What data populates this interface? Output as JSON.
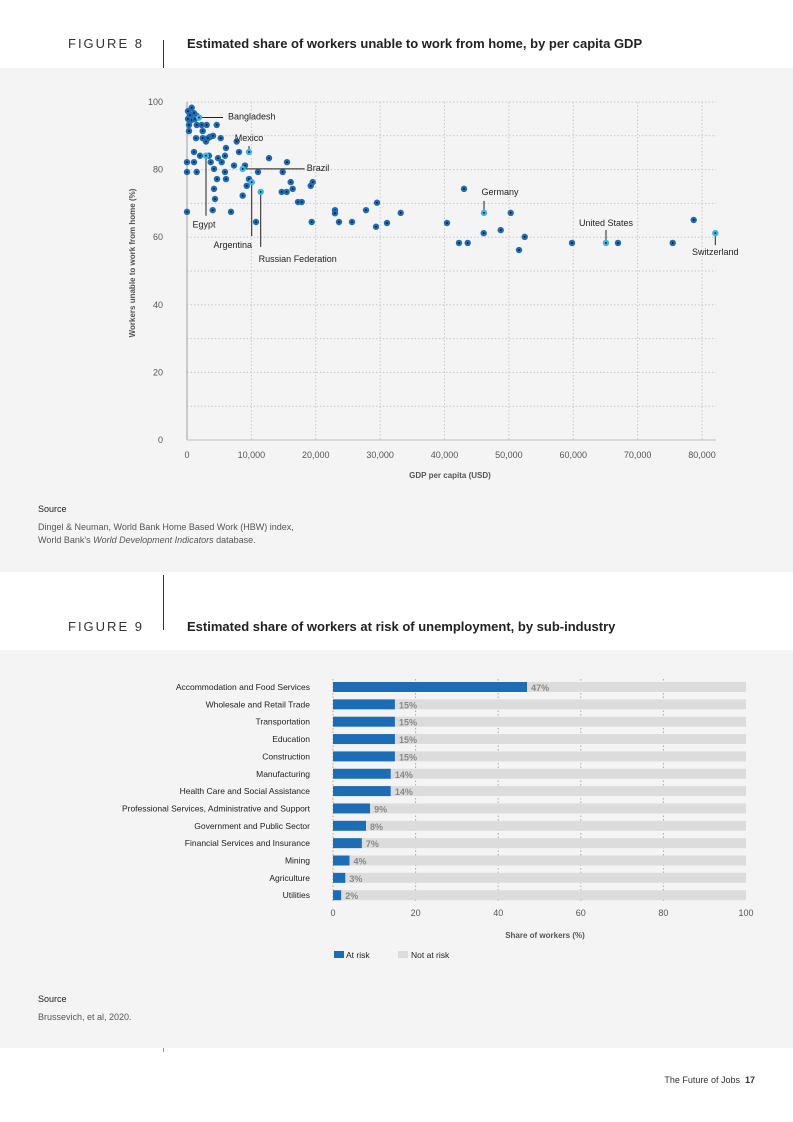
{
  "figure8": {
    "number": "FIGURE 8",
    "title": "Estimated share of workers unable to work from home, by per capita GDP",
    "source_heading": "Source",
    "source_line1": "Dingel & Neuman, World Bank Home Based Work (HBW) index,",
    "source_line2_prefix": "World Bank's ",
    "source_line2_italic": "World Development Indicators",
    "source_line2_suffix": " database."
  },
  "figure9": {
    "number": "FIGURE 9",
    "title": "Estimated share of workers at risk of unemployment, by sub-industry",
    "source_heading": "Source",
    "source_line1": "Brussevich, et al, 2020."
  },
  "footer": {
    "publication": "The Future of Jobs",
    "page": "17"
  },
  "chart_data": [
    {
      "type": "scatter",
      "xlabel": "GDP per capita (USD)",
      "ylabel": "Workers unable to work from home (%)",
      "xlim": [
        0,
        80000
      ],
      "ylim": [
        0,
        100
      ],
      "xticks": [
        "0",
        "10,000",
        "20,000",
        "30,000",
        "40,000",
        "50,000",
        "60,000",
        "70,000",
        "80,000"
      ],
      "yticks": [
        "0",
        "20",
        "40",
        "60",
        "80",
        "100"
      ],
      "grid": true,
      "colors": {
        "point": "#1f6cb5",
        "highlight": "#3cb4e5",
        "center": "#111111"
      },
      "points": [
        [
          730,
          98.3
        ],
        [
          155,
          97.3
        ],
        [
          1087,
          96.7
        ],
        [
          466,
          96.1
        ],
        [
          1507,
          95.9
        ],
        [
          155,
          95.0
        ],
        [
          730,
          94.7
        ],
        [
          1243,
          95.0
        ],
        [
          311,
          93.2
        ],
        [
          1507,
          93.2
        ],
        [
          2284,
          93.2
        ],
        [
          3060,
          93.2
        ],
        [
          4614,
          93.2
        ],
        [
          311,
          91.4
        ],
        [
          2439,
          91.4
        ],
        [
          1398,
          89.3
        ],
        [
          2439,
          89.3
        ],
        [
          3573,
          89.7
        ],
        [
          4039,
          90.0
        ],
        [
          3262,
          89.3
        ],
        [
          2951,
          88.3
        ],
        [
          5235,
          89.3
        ],
        [
          7720,
          88.3
        ],
        [
          6058,
          86.4
        ],
        [
          8078,
          85.2
        ],
        [
          1087,
          85.2
        ],
        [
          2019,
          84.1
        ],
        [
          3418,
          84.1
        ],
        [
          5903,
          84.1
        ],
        [
          4816,
          83.4
        ],
        [
          5390,
          82.2
        ],
        [
          12738,
          83.4
        ],
        [
          15534,
          82.2
        ],
        [
          0,
          82.2
        ],
        [
          1087,
          82.2
        ],
        [
          3682,
          82.2
        ],
        [
          7301,
          81.2
        ],
        [
          9010,
          81.2
        ],
        [
          4194,
          80.2
        ],
        [
          0,
          79.3
        ],
        [
          1507,
          79.3
        ],
        [
          5903,
          79.3
        ],
        [
          11029,
          79.3
        ],
        [
          14866,
          79.3
        ],
        [
          4660,
          77.2
        ],
        [
          6058,
          77.2
        ],
        [
          9631,
          77.2
        ],
        [
          9274,
          75.2
        ],
        [
          16109,
          76.3
        ],
        [
          19526,
          76.3
        ],
        [
          19216,
          75.2
        ],
        [
          4194,
          74.3
        ],
        [
          16419,
          74.3
        ],
        [
          14711,
          73.4
        ],
        [
          15488,
          73.4
        ],
        [
          8653,
          72.3
        ],
        [
          4350,
          71.3
        ],
        [
          17243,
          70.4
        ],
        [
          17817,
          70.4
        ],
        [
          0,
          67.5
        ],
        [
          3992,
          68.0
        ],
        [
          6835,
          67.5
        ],
        [
          22990,
          68.0
        ],
        [
          22990,
          67.1
        ],
        [
          27806,
          68.0
        ],
        [
          29515,
          70.2
        ],
        [
          29360,
          63.1
        ],
        [
          31068,
          64.2
        ],
        [
          33196,
          67.2
        ],
        [
          40388,
          64.2
        ],
        [
          43029,
          74.3
        ],
        [
          42253,
          58.3
        ],
        [
          43604,
          58.3
        ],
        [
          46090,
          61.2
        ],
        [
          48731,
          62.1
        ],
        [
          50284,
          67.2
        ],
        [
          52459,
          60.1
        ],
        [
          51573,
          56.2
        ],
        [
          59806,
          58.3
        ],
        [
          66951,
          58.3
        ],
        [
          75449,
          58.3
        ],
        [
          78711,
          65.1
        ],
        [
          10718,
          64.5
        ],
        [
          19371,
          64.5
        ],
        [
          23612,
          64.5
        ],
        [
          25631,
          64.5
        ]
      ],
      "labeled_points": [
        {
          "name": "Bangladesh",
          "x": 1864,
          "y": 95.4
        },
        {
          "name": "Mexico",
          "x": 9631,
          "y": 85.2
        },
        {
          "name": "Brazil",
          "x": 8653,
          "y": 80.2
        },
        {
          "name": "Egypt",
          "x": 2951,
          "y": 84.1
        },
        {
          "name": "Argentina",
          "x": 10051,
          "y": 76.3
        },
        {
          "name": "Russian Federation",
          "x": 11449,
          "y": 73.4
        },
        {
          "name": "Germany",
          "x": 46136,
          "y": 67.2
        },
        {
          "name": "United States",
          "x": 65087,
          "y": 58.3
        },
        {
          "name": "Switzerland",
          "x": 82067,
          "y": 61.2
        }
      ]
    },
    {
      "type": "bar",
      "orientation": "horizontal",
      "stacked": true,
      "categories": [
        "Accommodation and Food Services",
        "Wholesale and Retail Trade",
        "Transportation",
        "Education",
        "Construction",
        "Manufacturing",
        "Health Care and Social Assistance",
        "Professional Services, Administrative and Support",
        "Government and Public Sector",
        "Financial Services and Insurance",
        "Mining",
        "Agriculture",
        "Utilities"
      ],
      "series": [
        {
          "name": "At risk",
          "values": [
            47,
            15,
            15,
            15,
            15,
            14,
            14,
            9,
            8,
            7,
            4,
            3,
            2
          ],
          "color": "#1c6db6"
        },
        {
          "name": "Not at risk",
          "values": [
            53,
            85,
            85,
            85,
            85,
            86,
            86,
            91,
            92,
            93,
            96,
            97,
            98
          ],
          "color": "#dcdcdc"
        }
      ],
      "data_labels": [
        "47%",
        "15%",
        "15%",
        "15%",
        "15%",
        "14%",
        "14%",
        "9%",
        "8%",
        "7%",
        "4%",
        "3%",
        "2%"
      ],
      "xlabel": "Share of workers (%)",
      "xlim": [
        0,
        100
      ],
      "xticks": [
        "0",
        "20",
        "40",
        "60",
        "80",
        "100"
      ],
      "grid": true,
      "legend": "bottom-left"
    }
  ]
}
